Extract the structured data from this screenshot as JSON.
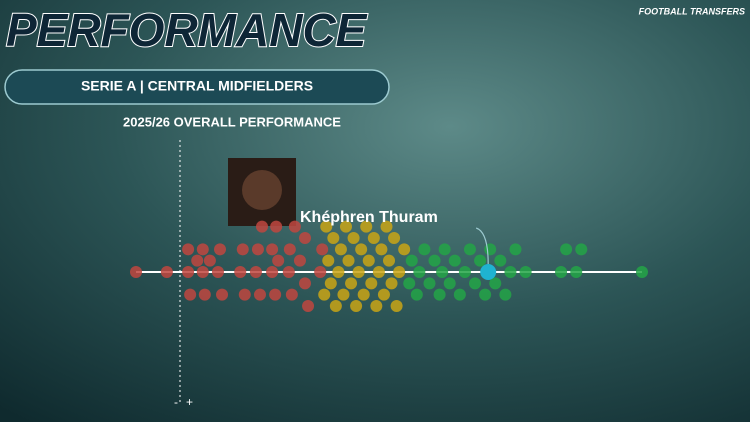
{
  "header": {
    "title": "PERFORMANCE",
    "subtitle": "SERIE A | CENTRAL MIDFIELDERS",
    "logo": "FOOTBALL TRANSFERS"
  },
  "chart_data": {
    "type": "beeswarm",
    "title": "2025/26 OVERALL PERFORMANCE",
    "xlim": [
      0,
      100
    ],
    "axis_labels": [
      "-",
      "+"
    ],
    "series": [
      {
        "color": "#c0473f",
        "values": [
          0,
          6.1,
          10.3,
          10.3,
          10.7,
          12.1,
          13.2,
          13.2,
          13.6,
          14.6,
          16.2,
          16.6,
          17,
          20.6,
          21.1,
          21.5,
          23.7,
          24.1,
          24.5,
          24.9,
          26.9,
          26.9,
          27.5,
          27.7,
          28.1,
          30.2,
          30.4,
          30.8,
          31.4,
          32.4,
          33.4,
          33.4,
          34,
          36.4,
          36.8
        ]
      },
      {
        "color": "#c9a515",
        "values": [
          37.2,
          37.6,
          38,
          38.5,
          39,
          39.5,
          40,
          40.5,
          41,
          41.5,
          42,
          42.5,
          43,
          43.5,
          44,
          44.5,
          45,
          45.5,
          46,
          46.5,
          47,
          47.5,
          48,
          48.5,
          49,
          49.5,
          50,
          50.5,
          51,
          51.5,
          52,
          53
        ]
      },
      {
        "color": "#23a447",
        "values": [
          54,
          54.5,
          55.5,
          56,
          57,
          58,
          59,
          60,
          60.5,
          61,
          62,
          63,
          64,
          65,
          66,
          67,
          68,
          69,
          70,
          71,
          72,
          73,
          74,
          75,
          77,
          84,
          85,
          87,
          88,
          100
        ]
      }
    ],
    "highlight": {
      "label": "Khéphren Thuram",
      "value": 69.6,
      "color": "#1fb3d1"
    }
  }
}
